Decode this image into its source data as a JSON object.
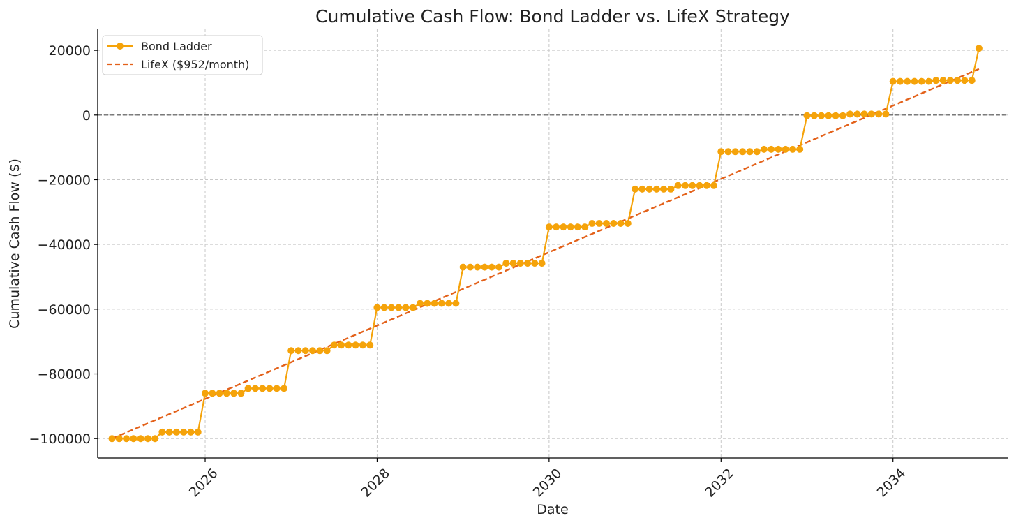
{
  "chart_data": {
    "type": "line",
    "title": "Cumulative Cash Flow: Bond Ladder vs. LifeX Strategy",
    "xlabel": "Date",
    "ylabel": "Cumulative Cash Flow ($)",
    "x_range": [
      "2024-10",
      "2035-05"
    ],
    "y_range": [
      -106000,
      26500
    ],
    "x_ticks": [
      {
        "label": "2026",
        "date": "2026-01"
      },
      {
        "label": "2028",
        "date": "2028-01"
      },
      {
        "label": "2030",
        "date": "2030-01"
      },
      {
        "label": "2032",
        "date": "2032-01"
      },
      {
        "label": "2034",
        "date": "2034-01"
      }
    ],
    "y_ticks": [
      {
        "label": "20000",
        "value": 20000
      },
      {
        "label": "0",
        "value": 0
      },
      {
        "label": "−20000",
        "value": -20000
      },
      {
        "label": "−40000",
        "value": -40000
      },
      {
        "label": "−60000",
        "value": -60000
      },
      {
        "label": "−80000",
        "value": -80000
      },
      {
        "label": "−100000",
        "value": -100000
      }
    ],
    "grid": true,
    "zero_line": true,
    "legend_position": "top-left",
    "series": [
      {
        "name": "Bond Ladder",
        "style": "solid-with-markers",
        "color": "#f5a30a",
        "steps": [
          {
            "start": "2024-12",
            "values": [
              -100000,
              -100000,
              -100000,
              -100000,
              -100000,
              -100000,
              -100000,
              -98000,
              -98000,
              -98000,
              -98000,
              -98000,
              -98000
            ]
          },
          {
            "start": "2026-01",
            "values": [
              -86000,
              -86000,
              -86000,
              -86000,
              -86000,
              -86000,
              -84500,
              -84500,
              -84500,
              -84500,
              -84500,
              -84500
            ]
          },
          {
            "start": "2027-01",
            "values": [
              -72800,
              -72800,
              -72800,
              -72800,
              -72800,
              -72800,
              -71100,
              -71100,
              -71100,
              -71100,
              -71100,
              -71100
            ]
          },
          {
            "start": "2028-01",
            "values": [
              -59500,
              -59500,
              -59500,
              -59500,
              -59500,
              -59500,
              -58200,
              -58200,
              -58200,
              -58200,
              -58200,
              -58200
            ]
          },
          {
            "start": "2029-01",
            "values": [
              -47000,
              -47000,
              -47000,
              -47000,
              -47000,
              -47000,
              -45800,
              -45800,
              -45800,
              -45800,
              -45800,
              -45800
            ]
          },
          {
            "start": "2030-01",
            "values": [
              -34600,
              -34600,
              -34600,
              -34600,
              -34600,
              -34600,
              -33500,
              -33500,
              -33500,
              -33500,
              -33500,
              -33500
            ]
          },
          {
            "start": "2031-01",
            "values": [
              -22900,
              -22900,
              -22900,
              -22900,
              -22900,
              -22900,
              -21800,
              -21800,
              -21800,
              -21800,
              -21800,
              -21800
            ]
          },
          {
            "start": "2032-01",
            "values": [
              -11300,
              -11300,
              -11300,
              -11300,
              -11300,
              -11300,
              -10600,
              -10600,
              -10600,
              -10600,
              -10600,
              -10600
            ]
          },
          {
            "start": "2033-01",
            "values": [
              -200,
              -200,
              -200,
              -200,
              -200,
              -200,
              300,
              300,
              300,
              300,
              300,
              300
            ]
          },
          {
            "start": "2034-01",
            "values": [
              10400,
              10400,
              10400,
              10400,
              10400,
              10400,
              10700,
              10700,
              10700,
              10700,
              10700,
              10700
            ]
          },
          {
            "start": "2035-01",
            "values": [
              20600
            ]
          }
        ]
      },
      {
        "name": "LifeX ($952/month)",
        "style": "dashed",
        "color": "#e3611a",
        "points": [
          {
            "date": "2024-12",
            "value": -100000
          },
          {
            "date": "2035-01",
            "value": 14240
          }
        ]
      }
    ]
  }
}
